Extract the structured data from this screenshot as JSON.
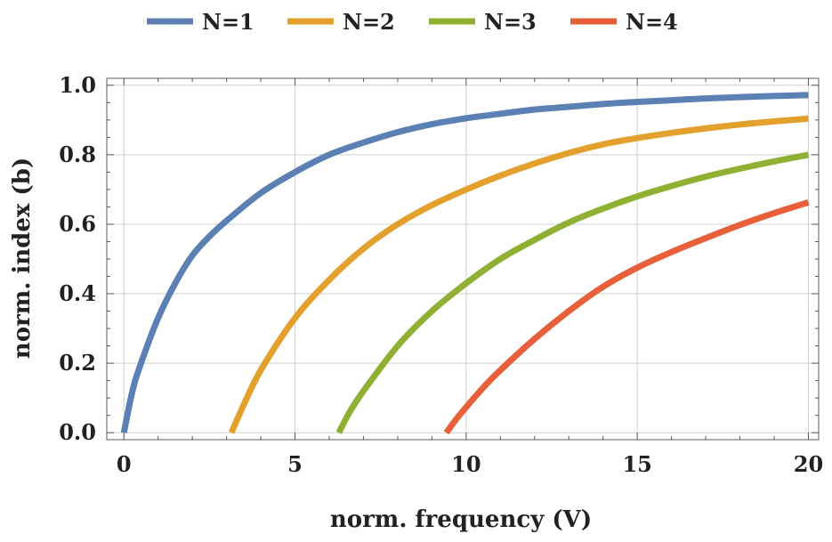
{
  "chart_data": {
    "type": "line",
    "title": "",
    "xlabel": "norm. frequency (V)",
    "ylabel": "norm. index (b)",
    "xlim": [
      -0.5,
      20.3
    ],
    "ylim": [
      -0.02,
      1.02
    ],
    "x_ticks": [
      0,
      5,
      10,
      15,
      20
    ],
    "x_tick_labels": [
      "0",
      "5",
      "10",
      "15",
      "20"
    ],
    "y_ticks": [
      0.0,
      0.2,
      0.4,
      0.6,
      0.8,
      1.0
    ],
    "y_tick_labels": [
      "0.0",
      "0.2",
      "0.4",
      "0.6",
      "0.8",
      "1.0"
    ],
    "grid": true,
    "legend_position": "top-center",
    "series": [
      {
        "name": "N=1",
        "color": "#5b80b4",
        "x": [
          0,
          0.25,
          0.5,
          1,
          1.5,
          2,
          2.5,
          3,
          4,
          5,
          6,
          7,
          8,
          9,
          10,
          11,
          12,
          13,
          14,
          15,
          16,
          17,
          18,
          19,
          20
        ],
        "y": [
          0.0,
          0.12,
          0.2,
          0.33,
          0.43,
          0.51,
          0.565,
          0.61,
          0.69,
          0.75,
          0.8,
          0.835,
          0.865,
          0.888,
          0.905,
          0.918,
          0.93,
          0.938,
          0.946,
          0.952,
          0.957,
          0.962,
          0.966,
          0.969,
          0.972
        ]
      },
      {
        "name": "N=2",
        "color": "#e3a02d",
        "x": [
          3.14,
          3.5,
          4,
          5,
          6,
          7,
          8,
          9,
          10,
          11,
          12,
          13,
          14,
          15,
          16,
          17,
          18,
          19,
          20
        ],
        "y": [
          0.0,
          0.08,
          0.18,
          0.33,
          0.44,
          0.53,
          0.6,
          0.655,
          0.7,
          0.74,
          0.775,
          0.805,
          0.83,
          0.848,
          0.863,
          0.876,
          0.887,
          0.896,
          0.904
        ]
      },
      {
        "name": "N=3",
        "color": "#8fb032",
        "x": [
          6.28,
          6.6,
          7,
          8,
          9,
          10,
          11,
          12,
          13,
          14,
          15,
          16,
          17,
          18,
          19,
          20
        ],
        "y": [
          0.0,
          0.06,
          0.12,
          0.25,
          0.35,
          0.43,
          0.5,
          0.555,
          0.605,
          0.645,
          0.68,
          0.71,
          0.737,
          0.76,
          0.781,
          0.8
        ]
      },
      {
        "name": "N=4",
        "color": "#e8603a",
        "x": [
          9.42,
          9.8,
          10.5,
          11,
          12,
          13,
          14,
          15,
          16,
          17,
          18,
          19,
          20
        ],
        "y": [
          0.0,
          0.05,
          0.13,
          0.18,
          0.27,
          0.35,
          0.42,
          0.475,
          0.52,
          0.56,
          0.598,
          0.632,
          0.663
        ]
      }
    ]
  }
}
